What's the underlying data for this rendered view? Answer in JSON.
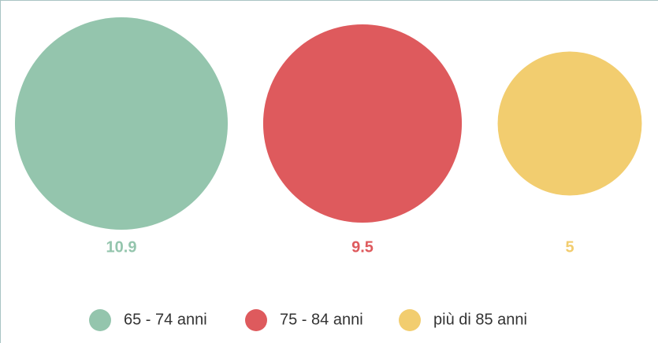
{
  "chart_data": {
    "type": "bubble",
    "categories": [
      "65 - 74 anni",
      "75 - 84 anni",
      "più di 85 anni"
    ],
    "values": [
      10.9,
      9.5,
      5
    ],
    "colors": [
      "#94c5ad",
      "#de5a5d",
      "#f2cd6f"
    ],
    "legend": "bottom"
  }
}
